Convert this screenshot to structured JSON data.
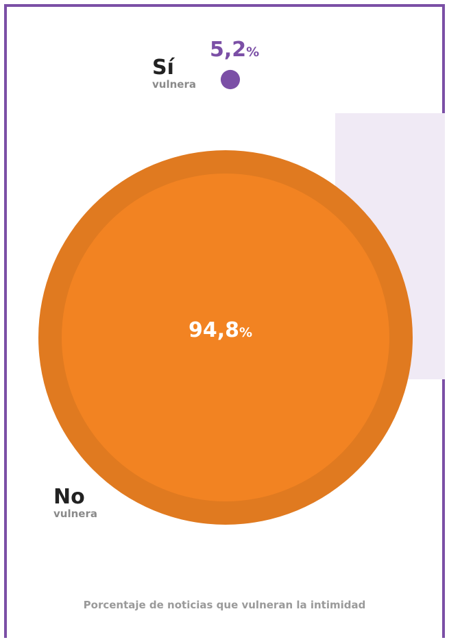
{
  "chart_data": {
    "type": "pie",
    "slices": [
      {
        "label": "Sí",
        "sublabel": "vulnera",
        "value": 5.2,
        "value_text": "5,2",
        "unit": "%",
        "color": "#7b4fa6"
      },
      {
        "label": "No",
        "sublabel": "vulnera",
        "value": 94.8,
        "value_text": "94,8",
        "unit": "%",
        "color": "#f28322"
      }
    ],
    "caption": "Porcentaje de noticias que vulneran la intimidad"
  },
  "colors": {
    "border": "#7b4fa6",
    "background_panel": "#f0eaf5",
    "no_ring": "#e07a20",
    "no_fill": "#f28322",
    "si_fill": "#7b4fa6"
  }
}
